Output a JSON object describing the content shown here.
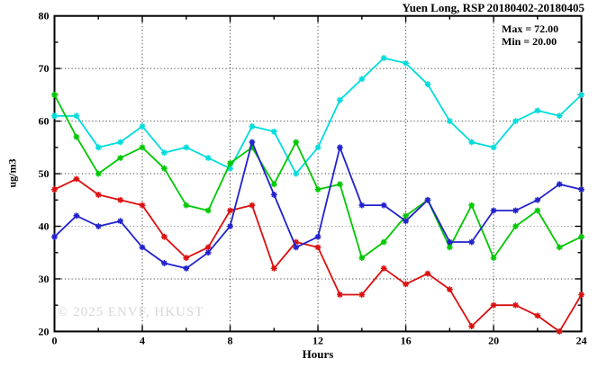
{
  "title": "Yuen Long, RSP 20180402-20180405",
  "stats": {
    "max_label": "Max = 72.00",
    "min_label": "Min = 20.00"
  },
  "watermark": "© 2025 ENVF, HKUST",
  "chart_data": {
    "type": "line",
    "title": "Yuen Long, RSP 20180402-20180405",
    "xlabel": "Hours",
    "ylabel": "ug/m3",
    "xlim": [
      0,
      24
    ],
    "ylim": [
      20,
      80
    ],
    "x_major_ticks": [
      0,
      4,
      8,
      12,
      16,
      20,
      24
    ],
    "x_minor_ticks": [
      2,
      6,
      10,
      14,
      18,
      22
    ],
    "y_major_ticks": [
      20,
      30,
      40,
      50,
      60,
      70,
      80
    ],
    "y_minor_ticks": [
      25,
      35,
      45,
      55,
      65,
      75
    ],
    "grid_x": [
      4,
      8,
      12,
      16,
      20
    ],
    "grid_y": [
      30,
      40,
      50,
      60,
      70
    ],
    "legend": "none",
    "marker": "asterisk",
    "x": [
      0,
      1,
      2,
      3,
      4,
      5,
      6,
      7,
      8,
      9,
      10,
      11,
      12,
      13,
      14,
      15,
      16,
      17,
      18,
      19,
      20,
      21,
      22,
      23,
      24
    ],
    "series": [
      {
        "name": "cyan-line",
        "color": "#00dcdc",
        "values": [
          61,
          61,
          55,
          56,
          59,
          54,
          55,
          53,
          51,
          59,
          58,
          50,
          55,
          64,
          68,
          72,
          71,
          67,
          60,
          56,
          55,
          60,
          62,
          61,
          65
        ]
      },
      {
        "name": "green-line",
        "color": "#00c800",
        "values": [
          65,
          57,
          50,
          53,
          55,
          51,
          44,
          43,
          52,
          55,
          48,
          56,
          47,
          48,
          34,
          37,
          42,
          45,
          36,
          44,
          34,
          40,
          43,
          36,
          38
        ]
      },
      {
        "name": "red-line",
        "color": "#dc0f0f",
        "values": [
          47,
          49,
          46,
          45,
          44,
          38,
          34,
          36,
          43,
          44,
          32,
          37,
          36,
          27,
          27,
          32,
          29,
          31,
          28,
          21,
          25,
          25,
          23,
          20,
          27
        ]
      },
      {
        "name": "blue-line",
        "color": "#2222cc",
        "values": [
          38,
          42,
          40,
          41,
          36,
          33,
          32,
          35,
          40,
          56,
          46,
          36,
          38,
          55,
          44,
          44,
          41,
          45,
          37,
          37,
          43,
          43,
          45,
          48,
          47
        ]
      }
    ],
    "annotations": [
      "Max = 72.00",
      "Min = 20.00"
    ]
  }
}
